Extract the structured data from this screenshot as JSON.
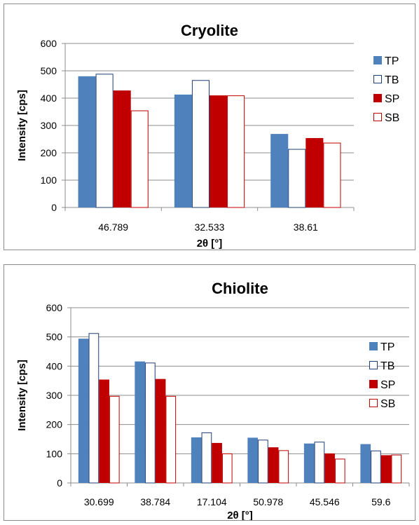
{
  "chart_data": [
    {
      "type": "bar",
      "title": "Cryolite",
      "xlabel": "2θ [°]",
      "ylabel": "Intensity [cps]",
      "ylim": [
        0,
        600
      ],
      "yticks": [
        0,
        100,
        200,
        300,
        400,
        500,
        600
      ],
      "grid": true,
      "legend": "right",
      "categories": [
        "46.789",
        "32.533",
        "38.61"
      ],
      "series": [
        {
          "name": "TP",
          "color": "#4f81bd",
          "filled": true,
          "values": [
            480,
            413,
            269
          ]
        },
        {
          "name": "TB",
          "color": "#1f3f73",
          "filled": false,
          "values": [
            489,
            466,
            214
          ]
        },
        {
          "name": "SP",
          "color": "#c00000",
          "filled": true,
          "values": [
            428,
            410,
            254
          ]
        },
        {
          "name": "SB",
          "color": "#c00000",
          "filled": false,
          "values": [
            355,
            410,
            237
          ]
        }
      ]
    },
    {
      "type": "bar",
      "title": "Chiolite",
      "xlabel": "2θ [°]",
      "ylabel": "Intensity [cps]",
      "ylim": [
        0,
        600
      ],
      "yticks": [
        0,
        100,
        200,
        300,
        400,
        500,
        600
      ],
      "grid": true,
      "legend": "right",
      "categories": [
        "30.699",
        "38.784",
        "17.104",
        "50.978",
        "45.546",
        "59.6"
      ],
      "series": [
        {
          "name": "TP",
          "color": "#4f81bd",
          "filled": true,
          "values": [
            494,
            416,
            156,
            155,
            135,
            133
          ]
        },
        {
          "name": "TB",
          "color": "#1f3f73",
          "filled": false,
          "values": [
            513,
            412,
            173,
            148,
            141,
            111
          ]
        },
        {
          "name": "SP",
          "color": "#c00000",
          "filled": true,
          "values": [
            354,
            356,
            137,
            122,
            101,
            95
          ]
        },
        {
          "name": "SB",
          "color": "#c00000",
          "filled": false,
          "values": [
            298,
            298,
            101,
            112,
            83,
            97
          ]
        }
      ]
    }
  ]
}
